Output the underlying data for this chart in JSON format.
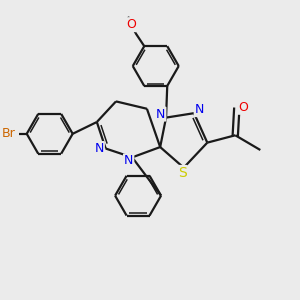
{
  "background_color": "#ebebeb",
  "bond_color": "#1a1a1a",
  "atoms": {
    "Br": {
      "color": "#cc6600"
    },
    "N": {
      "color": "#0000ee"
    },
    "O": {
      "color": "#ee0000"
    },
    "S": {
      "color": "#cccc00"
    }
  },
  "figsize": [
    3.0,
    3.0
  ],
  "dpi": 100
}
